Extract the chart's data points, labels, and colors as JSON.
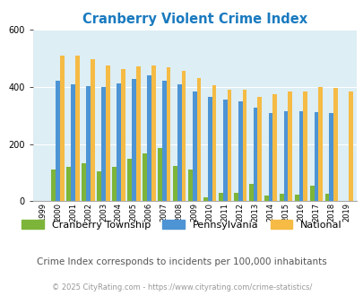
{
  "title": "Cranberry Violent Crime Index",
  "years": [
    1999,
    2000,
    2001,
    2002,
    2003,
    2004,
    2005,
    2006,
    2007,
    2008,
    2009,
    2010,
    2011,
    2012,
    2013,
    2014,
    2015,
    2016,
    2017,
    2018,
    2019
  ],
  "cranberry": [
    0,
    110,
    120,
    133,
    105,
    120,
    148,
    168,
    185,
    125,
    112,
    15,
    28,
    30,
    62,
    20,
    27,
    22,
    55,
    25,
    0
  ],
  "pennsylvania": [
    0,
    422,
    410,
    402,
    400,
    412,
    427,
    440,
    420,
    410,
    385,
    365,
    355,
    348,
    328,
    307,
    315,
    315,
    312,
    307,
    0
  ],
  "national": [
    0,
    510,
    510,
    498,
    476,
    463,
    470,
    474,
    467,
    455,
    430,
    407,
    390,
    390,
    365,
    375,
    383,
    383,
    400,
    395,
    383
  ],
  "cranberry_color": "#7db53a",
  "pennsylvania_color": "#4d94d4",
  "national_color": "#f5bb45",
  "bg_color": "#ddeef4",
  "ylim": [
    0,
    600
  ],
  "yticks": [
    0,
    200,
    400,
    600
  ],
  "subtitle": "Crime Index corresponds to incidents per 100,000 inhabitants",
  "footer": "© 2025 CityRating.com - https://www.cityrating.com/crime-statistics/",
  "title_color": "#1a7abf",
  "subtitle_color": "#555555",
  "footer_color": "#999999"
}
